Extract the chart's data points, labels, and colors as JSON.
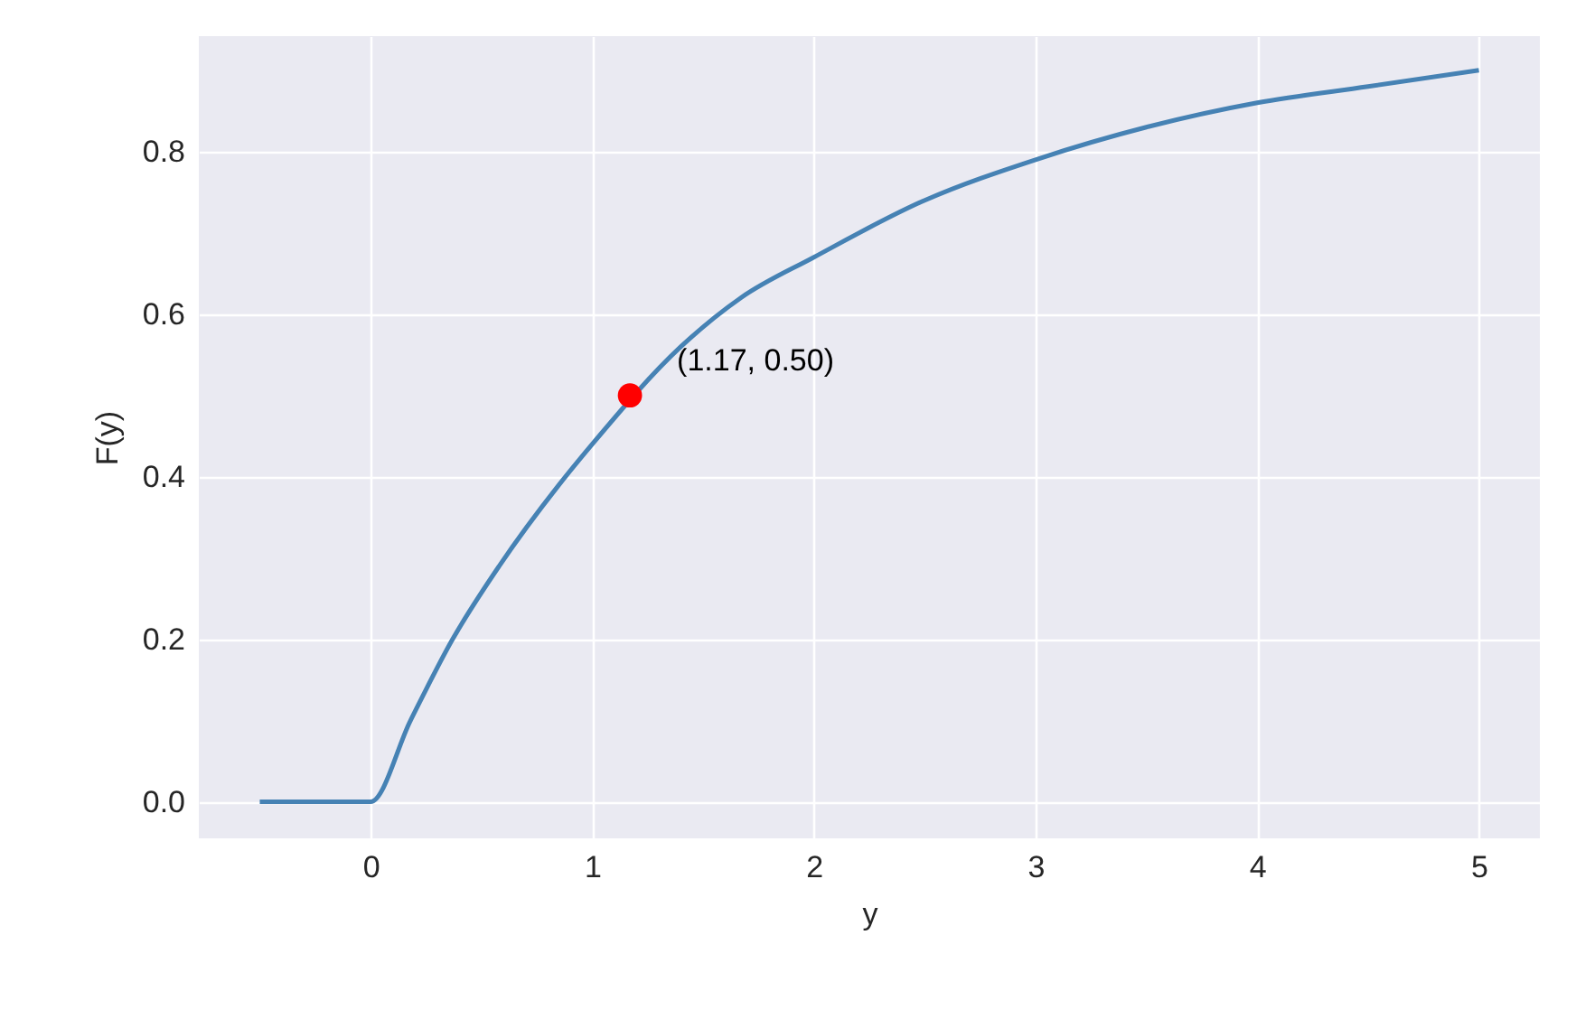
{
  "chart_data": {
    "type": "line",
    "xlabel": "y",
    "ylabel": "F(y)",
    "series": [
      {
        "color": "#4682b4",
        "marker": "none",
        "line_style": "solid",
        "x": [
          -0.5,
          0,
          0.18,
          0.37,
          0.58,
          0.85,
          1,
          1.4,
          1.67,
          2,
          2.5,
          3,
          3.5,
          4,
          4.5,
          5
        ],
        "values": [
          0,
          0,
          0.1,
          0.2,
          0.29,
          0.39,
          0.44,
          0.56,
          0.62,
          0.67,
          0.74,
          0.79,
          0.83,
          0.86,
          0.88,
          0.9
        ]
      },
      {
        "type": "scatter",
        "color": "#ff0000",
        "marker": "circle",
        "x": [
          1.17
        ],
        "values": [
          0.5
        ]
      }
    ],
    "annotations": [
      {
        "text": "(1.17, 0.50)",
        "x": 1.17,
        "y": 0.5
      }
    ],
    "xlim": [
      -0.775,
      5.275
    ],
    "xticks": [
      0,
      1,
      2,
      3,
      4,
      5
    ],
    "ylim": [
      -0.045,
      0.942
    ],
    "yticks": [
      {
        "value": 0,
        "label": "0.0"
      },
      {
        "value": 0.2,
        "label": "0.2"
      },
      {
        "value": 0.4,
        "label": "0.4"
      },
      {
        "value": 0.6,
        "label": "0.6"
      },
      {
        "value": 0.8,
        "label": "0.8"
      }
    ],
    "grid": true
  }
}
